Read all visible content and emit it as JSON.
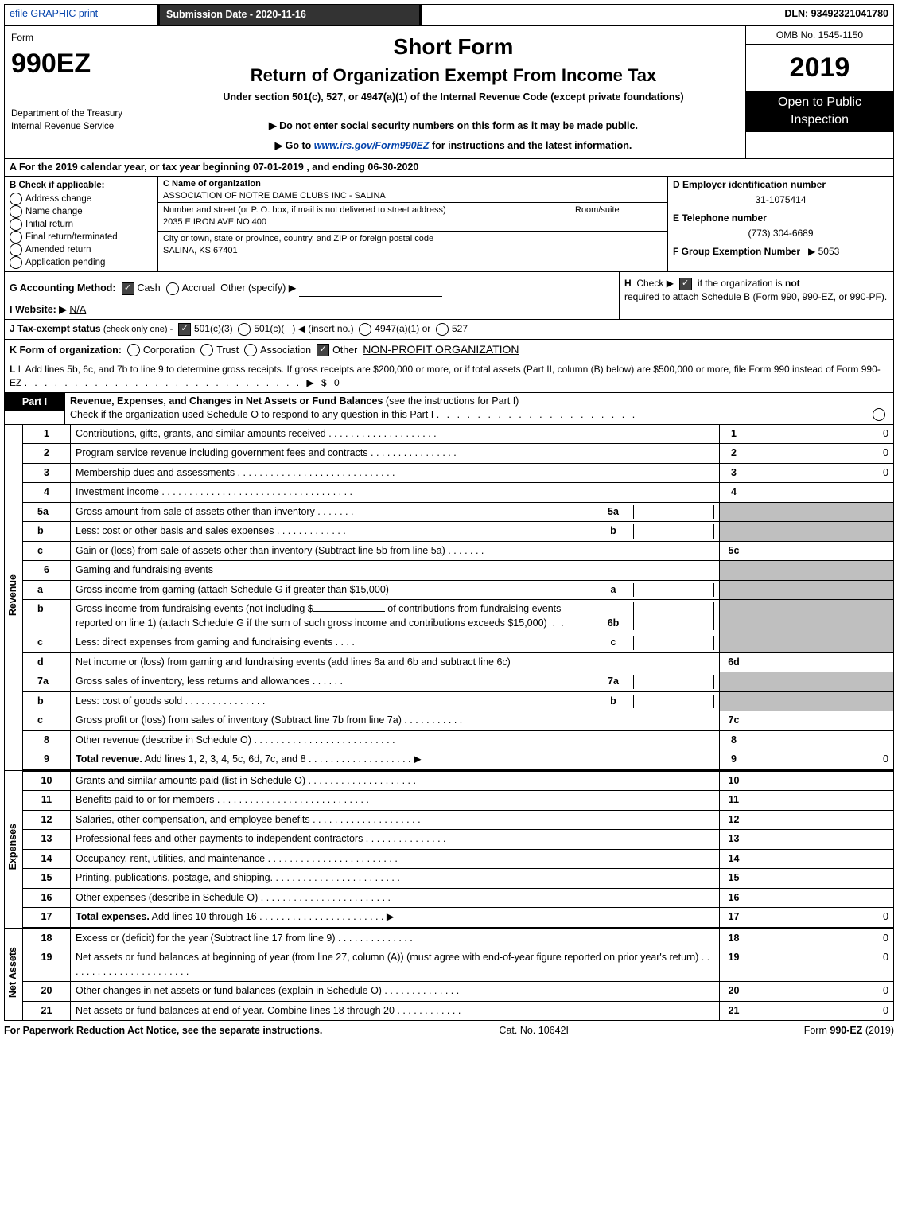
{
  "topbar": {
    "efile_link": "efile GRAPHIC print",
    "submission_btn": "Submission Date - 2020-11-16",
    "dln": "DLN: 93492321041780"
  },
  "hdr_left": {
    "form_word": "Form",
    "form_no": "990EZ",
    "dept1": "Department of the Treasury",
    "dept2": "Internal Revenue Service"
  },
  "hdr_mid": {
    "title1": "Short Form",
    "title2": "Return of Organization Exempt From Income Tax",
    "sub1": "Under section 501(c), 527, or 4947(a)(1) of the Internal Revenue Code (except private foundations)",
    "pt1": "▶ Do not enter social security numbers on this form as it may be made public.",
    "pt2_pre": "▶ Go to ",
    "pt2_link": "www.irs.gov/Form990EZ",
    "pt2_post": " for instructions and the latest information."
  },
  "hdr_right": {
    "omb": "OMB No. 1545-1150",
    "year": "2019",
    "open": "Open to Public Inspection"
  },
  "lineA": "A For the 2019 calendar year, or tax year beginning 07-01-2019 , and ending 06-30-2020",
  "B": {
    "title": "B Check if applicable:",
    "addr_change": "Address change",
    "name_change": "Name change",
    "initial": "Initial return",
    "final": "Final return/terminated",
    "amended": "Amended return",
    "appl_pending": "Application pending"
  },
  "C": {
    "c_label": "C Name of organization",
    "org": "ASSOCIATION OF NOTRE DAME CLUBS INC - SALINA",
    "street_label": "Number and street (or P. O. box, if mail is not delivered to street address)",
    "room_label": "Room/suite",
    "street": "2035 E IRON AVE NO 400",
    "city_label": "City or town, state or province, country, and ZIP or foreign postal code",
    "city": "SALINA, KS  67401"
  },
  "D": {
    "d_label": "D Employer identification number",
    "ein": "31-1075414",
    "e_label": "E Telephone number",
    "phone": "(773) 304-6689",
    "f_label": "F Group Exemption Number",
    "f_val": "▶ 5053"
  },
  "G_label": "G Accounting Method:",
  "G_cash": "Cash",
  "G_accrual": "Accrual",
  "G_other": "Other (specify) ▶",
  "H_text1": "Check ▶",
  "H_text2": "if the organization is ",
  "H_not": "not",
  "H_text3": "required to attach Schedule B (Form 990, 990-EZ, or 990-PF).",
  "I_label": "I Website: ▶",
  "I_val": "N/A",
  "J_label": "J Tax-exempt status",
  "J_sub": "(check only one) -",
  "J_5013": "501(c)(3)",
  "J_501c_pre": "501(c)(",
  "J_501c_post": ") ◀ (insert no.)",
  "J_4947": "4947(a)(1) or",
  "J_527": "527",
  "K_label": "K Form of organization:",
  "K_corp": "Corporation",
  "K_trust": "Trust",
  "K_assoc": "Association",
  "K_other": "Other",
  "K_other_val": "NON-PROFIT ORGANIZATION",
  "L_text": "L Add lines 5b, 6c, and 7b to line 9 to determine gross receipts. If gross receipts are $200,000 or more, or if total assets (Part II, column (B) below) are $500,000 or more, file Form 990 instead of Form 990-EZ",
  "L_dots": " .  .  .  .  .  .  .  .  .  .  .  .  .  .  .  .  .  .  .  .  .  .  .  .  .  .  .  .  ▶ $ 0",
  "partI": {
    "tag": "Part I",
    "title": "Revenue, Expenses, and Changes in Net Assets or Fund Balances",
    "sub": "(see the instructions for Part I)",
    "check_line": "Check if the organization used Schedule O to respond to any question in this Part I",
    "check_dots": " .  .  .  .  .  .  .  .  .  .  .  .  .  .  .  .  .  .  .  . "
  },
  "rev_label": "Revenue",
  "exp_label": "Expenses",
  "na_label": "Net Assets",
  "lines": {
    "1": {
      "d": "Contributions, gifts, grants, and similar amounts received .  .  .  .  .  .  .  .  .  .  .  .  .  .  .  .  .  .  .  .  ",
      "v": "0"
    },
    "2": {
      "d": "Program service revenue including government fees and contracts .  .  .  .  .  .  .  .  .  .  .  .  .  .  .  .  ",
      "v": "0"
    },
    "3": {
      "d": "Membership dues and assessments .  .  .  .  .  .  .  .  .  .  .  .  .  .  .  .  .  .  .  .  .  .  .  .  .  .  .  .  .  ",
      "v": "0"
    },
    "4": {
      "d": "Investment income . .  .  .  .  .  .  .  .  .  .  .  .  .  .  .  .  .  .  .  .  .  .  .  .  .  .  .  .  .  .  .  .  .  .  ",
      "v": ""
    },
    "5a": {
      "d": "Gross amount from sale of assets other than inventory .  .  .  .  .  .  . "
    },
    "5b": {
      "d": "Less: cost or other basis and sales expenses .  .  .  .  .  .  .  .  .  .  .  .  . "
    },
    "5c": {
      "d": "Gain or (loss) from sale of assets other than inventory (Subtract line 5b from line 5a) .  .  .  .  .  .  . ",
      "v": ""
    },
    "6": {
      "d": "Gaming and fundraising events"
    },
    "6a": {
      "d": "Gross income from gaming (attach Schedule G if greater than $15,000)"
    },
    "6b_pre": "Gross income from fundraising events (not including $",
    "6b_post": " of contributions from fundraising events reported on line 1) (attach Schedule G if the sum of such gross income and contributions exceeds $15,000)",
    "6c": {
      "d": "Less: direct expenses from gaming and fundraising events   .  .  .  . "
    },
    "6d": {
      "d": "Net income or (loss) from gaming and fundraising events (add lines 6a and 6b and subtract line 6c)",
      "v": ""
    },
    "7a": {
      "d": "Gross sales of inventory, less returns and allowances .  .  .  .  .  . "
    },
    "7b": {
      "d": "Less: cost of goods sold       .  .  .  .  .  .  .  .  .  .  .  .  .  .  . "
    },
    "7c": {
      "d": "Gross profit or (loss) from sales of inventory (Subtract line 7b from line 7a) .  .  .  .  .  .  .  .  .  .  . ",
      "v": ""
    },
    "8": {
      "d": "Other revenue (describe in Schedule O) .  .  .  .  .  .  .  .  .  .  .  .  .  .  .  .  .  .  .  .  .  .  .  .  .  . ",
      "v": ""
    },
    "9": {
      "d": "Total revenue. Add lines 1, 2, 3, 4, 5c, 6d, 7c, and 8  .  .  .  .  .  .  .  .  .  .  .  .  .  .  .  .  .  .  .  ▶",
      "v": "0",
      "b": true
    },
    "10": {
      "d": "Grants and similar amounts paid (list in Schedule O) .  .  .  .  .  .  .  .  .  .  .  .  .  .  .  .  .  .  .  .",
      "v": ""
    },
    "11": {
      "d": "Benefits paid to or for members   .  .  .  .  .  .  .  .  .  .  .  .  .  .  .  .  .  .  .  .  .  .  .  .  .  .  .  .",
      "v": ""
    },
    "12": {
      "d": "Salaries, other compensation, and employee benefits .  .  .  .  .  .  .  .  .  .  .  .  .  .  .  .  .  .  .  .",
      "v": ""
    },
    "13": {
      "d": "Professional fees and other payments to independent contractors .  .  .  .  .  .  .  .  .  .  .  .  .  .  .",
      "v": ""
    },
    "14": {
      "d": "Occupancy, rent, utilities, and maintenance .  .  .  .  .  .  .  .  .  .  .  .  .  .  .  .  .  .  .  .  .  .  .  .",
      "v": ""
    },
    "15": {
      "d": "Printing, publications, postage, and shipping. .  .  .  .  .  .  .  .  .  .  .  .  .  .  .  .  .  .  .  .  .  .  .",
      "v": ""
    },
    "16": {
      "d": "Other expenses (describe in Schedule O)   .  .  .  .  .  .  .  .  .  .  .  .  .  .  .  .  .  .  .  .  .  .  .  .",
      "v": ""
    },
    "17": {
      "d": "Total expenses. Add lines 10 through 16  .  .  .  .  .  .  .  .  .  .  .  .  .  .  .  .  .  .  .  .  .  .  .  ▶",
      "v": "0",
      "b": true
    },
    "18": {
      "d": "Excess or (deficit) for the year (Subtract line 17 from line 9)   .  .  .  .  .  .  .  .  .  .  .  .  .  .",
      "v": "0"
    },
    "19": {
      "d": "Net assets or fund balances at beginning of year (from line 27, column (A)) (must agree with end-of-year figure reported on prior year's return) .  .  .  .  .  .  .  .  .  .  .  .  .  .  .  .  .  .  .  .  .  .  .",
      "v": "0"
    },
    "20": {
      "d": "Other changes in net assets or fund balances (explain in Schedule O) .  .  .  .  .  .  .  .  .  .  .  .  .  .",
      "v": "0"
    },
    "21": {
      "d": "Net assets or fund balances at end of year. Combine lines 18 through 20 .  .  .  .  .  .  .  .  .  .  .  .",
      "v": "0"
    }
  },
  "footer": {
    "pra": "For Paperwork Reduction Act Notice, see the separate instructions.",
    "cat": "Cat. No. 10642I",
    "form": "Form",
    "formno": "990-EZ",
    "yr": "(2019)"
  }
}
